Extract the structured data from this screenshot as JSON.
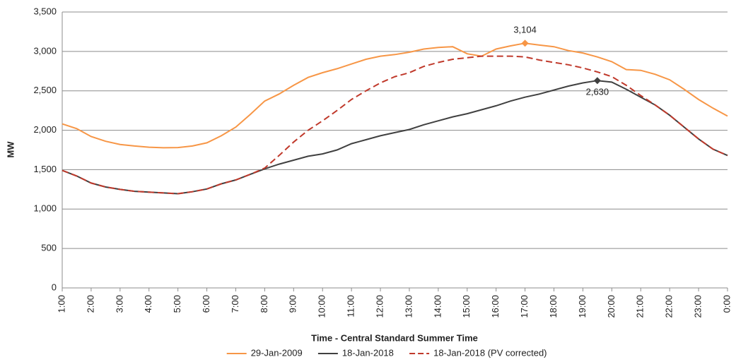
{
  "chart_data": {
    "type": "line",
    "xlabel": "Time - Central Standard Summer Time",
    "ylabel": "MW",
    "categories": [
      "1:00",
      null,
      "2:00",
      null,
      "3:00",
      null,
      "4:00",
      null,
      "5:00",
      null,
      "6:00",
      null,
      "7:00",
      null,
      "8:00",
      null,
      "9:00",
      null,
      "10:00",
      null,
      "11:00",
      null,
      "12:00",
      null,
      "13:00",
      null,
      "14:00",
      null,
      "15:00",
      null,
      "16:00",
      null,
      "17:00",
      null,
      "18:00",
      null,
      "19:00",
      null,
      "20:00",
      null,
      "21:00",
      null,
      "22:00",
      null,
      "23:00",
      null,
      "0:00"
    ],
    "series": [
      {
        "name": "29-Jan-2009",
        "color": "#f79646",
        "dash": false,
        "values": [
          2080,
          2020,
          1920,
          1860,
          1820,
          1800,
          1785,
          1778,
          1780,
          1800,
          1840,
          1930,
          2040,
          2200,
          2370,
          2460,
          2570,
          2670,
          2730,
          2780,
          2840,
          2900,
          2940,
          2960,
          2990,
          3030,
          3050,
          3060,
          2970,
          2940,
          3030,
          3070,
          3104,
          3080,
          3060,
          3010,
          2980,
          2930,
          2870,
          2770,
          2760,
          2710,
          2640,
          2520,
          2390,
          2280,
          2180
        ],
        "value_labels": [
          null,
          null,
          null,
          null,
          null,
          null,
          null,
          null,
          null,
          null,
          null,
          null,
          null,
          null,
          null,
          null,
          null,
          null,
          null,
          null,
          null,
          null,
          null,
          null,
          null,
          null,
          null,
          null,
          null,
          null,
          null,
          null,
          "3,104",
          null,
          null,
          null,
          null,
          null,
          null,
          null,
          null,
          null,
          null,
          null,
          null,
          null,
          null
        ]
      },
      {
        "name": "18-Jan-2018",
        "color": "#404040",
        "dash": false,
        "values": [
          1490,
          1420,
          1330,
          1280,
          1250,
          1225,
          1215,
          1205,
          1195,
          1220,
          1255,
          1320,
          1370,
          1440,
          1510,
          1570,
          1620,
          1670,
          1700,
          1750,
          1830,
          1880,
          1930,
          1970,
          2010,
          2070,
          2120,
          2170,
          2210,
          2260,
          2310,
          2370,
          2420,
          2460,
          2510,
          2560,
          2600,
          2630,
          2610,
          2520,
          2420,
          2320,
          2190,
          2040,
          1890,
          1760,
          1680
        ],
        "value_labels": [
          null,
          null,
          null,
          null,
          null,
          null,
          null,
          null,
          null,
          null,
          null,
          null,
          null,
          null,
          null,
          null,
          null,
          null,
          null,
          null,
          null,
          null,
          null,
          null,
          null,
          null,
          null,
          null,
          null,
          null,
          null,
          null,
          null,
          null,
          null,
          null,
          null,
          "2,630",
          null,
          null,
          null,
          null,
          null,
          null,
          null,
          null,
          null
        ]
      },
      {
        "name": "18-Jan-2018 (PV corrected)",
        "color": "#c0392b",
        "dash": true,
        "values": [
          1490,
          1420,
          1330,
          1280,
          1250,
          1225,
          1215,
          1205,
          1195,
          1220,
          1255,
          1320,
          1370,
          1440,
          1520,
          1680,
          1850,
          2000,
          2120,
          2250,
          2390,
          2500,
          2600,
          2680,
          2730,
          2810,
          2860,
          2900,
          2920,
          2940,
          2940,
          2940,
          2930,
          2890,
          2860,
          2830,
          2790,
          2740,
          2680,
          2570,
          2440,
          2320,
          2190,
          2040,
          1890,
          1760,
          1680
        ]
      }
    ],
    "ylim": [
      0,
      3500
    ],
    "yticks": [
      0,
      500,
      {
        "value": 1000,
        "label": "1,000"
      },
      {
        "value": 1500,
        "label": "1,500"
      },
      {
        "value": 2000,
        "label": "2,000"
      },
      {
        "value": 2500,
        "label": "2,500"
      },
      {
        "value": 3000,
        "label": "3,000"
      },
      {
        "value": 3500,
        "label": "3,500"
      }
    ],
    "grid": true,
    "legend": "bottom"
  }
}
